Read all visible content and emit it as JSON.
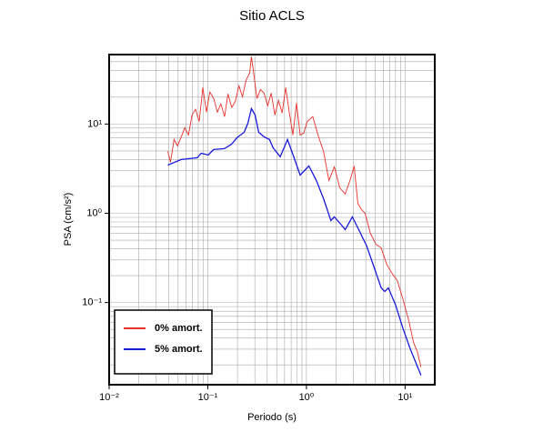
{
  "chart_data": {
    "type": "line",
    "title": "Sitio ACLS",
    "xlabel": "Periodo (s)",
    "ylabel": "PSA (cm/s²)",
    "xscale": "log",
    "yscale": "log",
    "grid": true,
    "minor_grid": true,
    "legend": "lower left",
    "xlim": [
      0.01,
      20
    ],
    "ylim": [
      0.012,
      60
    ],
    "xticks": [
      {
        "value": 0.01,
        "label": "10⁻²"
      },
      {
        "value": 0.1,
        "label": "10⁻¹"
      },
      {
        "value": 1,
        "label": "10⁰"
      },
      {
        "value": 10,
        "label": "10¹"
      }
    ],
    "yticks": [
      {
        "value": 0.1,
        "label": "10⁻¹"
      },
      {
        "value": 1,
        "label": "10⁰"
      },
      {
        "value": 10,
        "label": "10¹"
      }
    ],
    "series": [
      {
        "name": "0% amort.",
        "color": "#e8302a",
        "x": [
          0.0393,
          0.0418,
          0.0455,
          0.0494,
          0.0538,
          0.0585,
          0.0637,
          0.0692,
          0.0752,
          0.0819,
          0.0891,
          0.0969,
          0.105,
          0.115,
          0.125,
          0.136,
          0.148,
          0.16,
          0.175,
          0.19,
          0.207,
          0.225,
          0.244,
          0.266,
          0.277,
          0.289,
          0.315,
          0.342,
          0.372,
          0.405,
          0.44,
          0.479,
          0.521,
          0.567,
          0.616,
          0.67,
          0.729,
          0.794,
          0.863,
          0.939,
          1.02,
          1.16,
          1.31,
          1.49,
          1.69,
          1.92,
          2.18,
          2.47,
          2.8,
          3.05,
          3.32,
          3.61,
          3.93,
          4.45,
          5.05,
          5.73,
          6.5,
          7.38,
          8.36,
          9.49,
          10.8,
          12.2,
          13.3,
          14.5
        ],
        "values": [
          4.94,
          3.73,
          6.71,
          5.69,
          7.2,
          9.1,
          7.54,
          12.6,
          14.6,
          10.7,
          25.6,
          13.6,
          22.8,
          19.3,
          13.6,
          16.8,
          12.1,
          21.7,
          15.3,
          18,
          26.8,
          20.2,
          30.9,
          37.3,
          56.9,
          41,
          19.3,
          24.4,
          22.2,
          16,
          22.2,
          12.6,
          18.4,
          13.3,
          25.6,
          13.6,
          7.54,
          17.2,
          7.54,
          7.9,
          10.7,
          12.1,
          7.54,
          4.94,
          2.33,
          3.32,
          1.93,
          1.64,
          2.44,
          3.39,
          1.29,
          1.1,
          1.0,
          0.597,
          0.45,
          0.41,
          0.268,
          0.212,
          0.176,
          0.11,
          0.0655,
          0.0356,
          0.0281,
          0.0189
        ]
      },
      {
        "name": "5% amort.",
        "color": "#1a1adc",
        "x": [
          0.0393,
          0.0538,
          0.0785,
          0.0855,
          0.101,
          0.115,
          0.148,
          0.175,
          0.198,
          0.234,
          0.255,
          0.277,
          0.302,
          0.328,
          0.372,
          0.422,
          0.459,
          0.543,
          0.643,
          0.761,
          0.863,
          1.06,
          1.26,
          1.49,
          1.77,
          1.92,
          2.27,
          2.47,
          2.92,
          3.46,
          4.09,
          4.84,
          5.73,
          6.23,
          6.78,
          8.02,
          9.49,
          11.2,
          13.3,
          14.5
        ],
        "values": [
          3.47,
          4.0,
          4.19,
          4.71,
          4.5,
          5.18,
          5.3,
          5.97,
          7.03,
          8.09,
          10.2,
          14.9,
          12.6,
          8.09,
          7.2,
          6.71,
          5.43,
          4.29,
          6.71,
          4.0,
          2.68,
          3.39,
          2.33,
          1.46,
          0.829,
          0.91,
          0.737,
          0.655,
          0.91,
          0.625,
          0.429,
          0.25,
          0.146,
          0.133,
          0.146,
          0.0932,
          0.0518,
          0.0309,
          0.0193,
          0.0153
        ]
      }
    ]
  }
}
